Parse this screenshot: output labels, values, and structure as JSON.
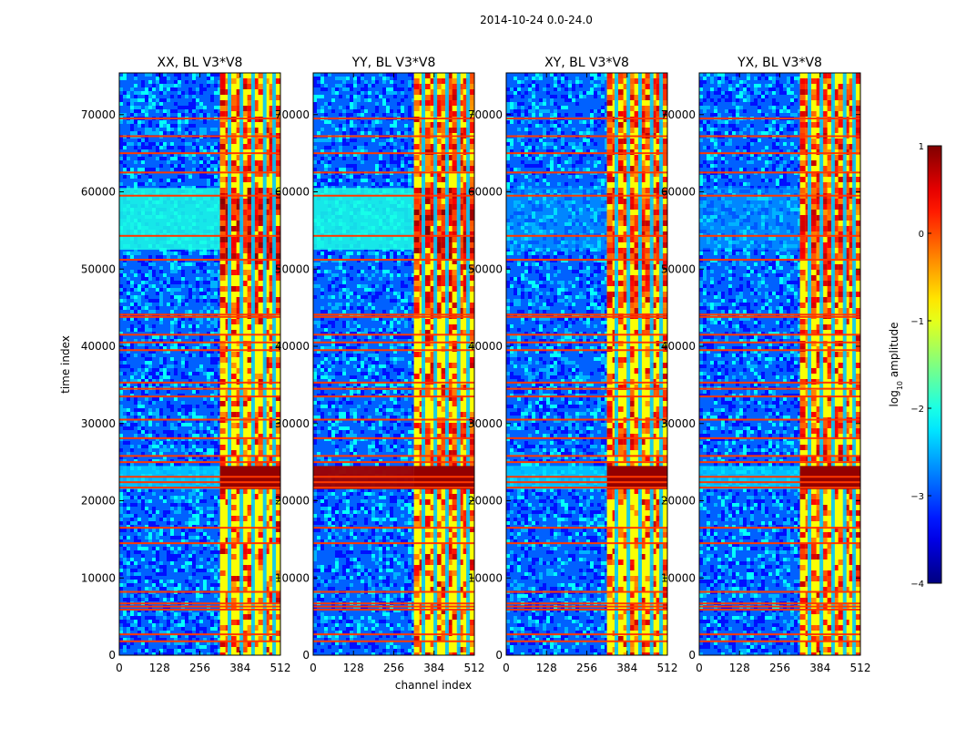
{
  "chart_data": {
    "type": "heatmap",
    "suptitle": "2014-10-24 0.0-24.0",
    "xlabel": "channel index",
    "ylabel": "time index",
    "xlim": [
      0,
      512
    ],
    "ylim": [
      0,
      75400
    ],
    "xticks": [
      0,
      128,
      256,
      384,
      512
    ],
    "yticks": [
      0,
      10000,
      20000,
      30000,
      40000,
      50000,
      60000,
      70000
    ],
    "colormap": "jet",
    "colorbar": {
      "label": "log",
      "label_sub": "10",
      "label_rest": " amplitude",
      "min": -4,
      "max": 1,
      "ticks": [
        "1",
        "0",
        "−1",
        "−2",
        "−3",
        "−4"
      ]
    },
    "panels": [
      {
        "title": "XX, BL V3*V8",
        "strong_band_level": 0.05
      },
      {
        "title": "YY, BL V3*V8",
        "strong_band_level": 0.55
      },
      {
        "title": "XY, BL V3*V8",
        "strong_band_level": 0.2
      },
      {
        "title": "YX, BL V3*V8",
        "strong_band_level": 0.1
      }
    ],
    "features": {
      "bright_channels": [
        320,
        512
      ],
      "bright_column_channels": [
        350,
        388,
        425,
        462,
        492
      ],
      "flagged_rows": [
        1800,
        2700,
        5900,
        6300,
        6700,
        8200,
        14500,
        16500,
        21700,
        22400,
        23100,
        25000,
        25800,
        28100,
        30500,
        33500,
        34500,
        35300,
        39500,
        40500,
        41500,
        43800,
        44100,
        51200,
        54300,
        59500,
        62500,
        65000,
        67200,
        69500
      ],
      "enhanced_time_ranges": [
        [
          52500,
          60500
        ],
        [
          21500,
          24500
        ]
      ]
    }
  }
}
